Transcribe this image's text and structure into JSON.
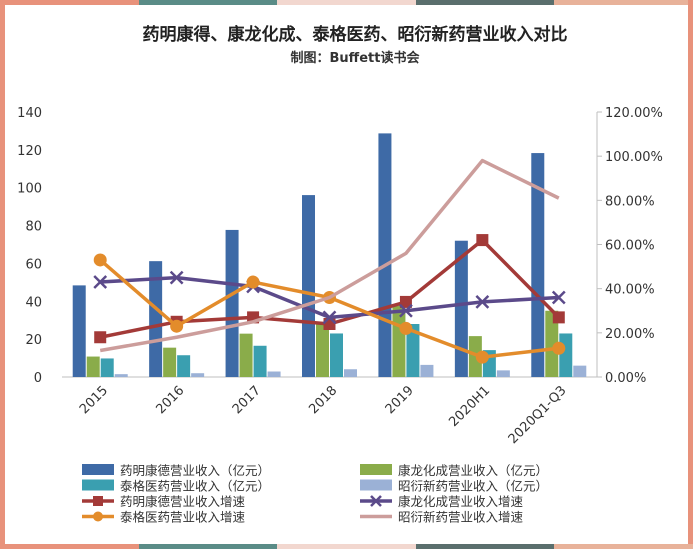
{
  "frame_colors": [
    "#e8927b",
    "#5a8c87",
    "#f2d7cf",
    "#5a6f6d",
    "#e8b29a"
  ],
  "chart_data": {
    "type": "bar",
    "title": "药明康得、康龙化成、泰格医药、昭衍新药营业收入对比",
    "subtitle": "制图：Buffett读书会",
    "categories": [
      "2015",
      "2016",
      "2017",
      "2018",
      "2019",
      "2020H1",
      "2020Q1-Q3"
    ],
    "y_left": {
      "ylim": [
        0,
        140
      ],
      "ticks": [
        "0",
        "20",
        "40",
        "60",
        "80",
        "100",
        "120",
        "140"
      ]
    },
    "y_right": {
      "ylim": [
        0,
        120
      ],
      "ticks": [
        "0.00%",
        "20.00%",
        "40.00%",
        "60.00%",
        "80.00%",
        "100.00%",
        "120.00%"
      ]
    },
    "grid": false,
    "legend_position": "bottom",
    "bar_series": [
      {
        "name": "药明康德营业收入（亿元）",
        "color": "#3e6aa6",
        "values": [
          48.4,
          61.2,
          77.7,
          96.1,
          128.7,
          72.0,
          118.3
        ]
      },
      {
        "name": "康龙化成营业收入（亿元）",
        "color": "#8aac4a",
        "values": [
          10.8,
          15.5,
          22.9,
          29.1,
          37.6,
          21.6,
          35.0
        ]
      },
      {
        "name": "泰格医药营业收入（亿元）",
        "color": "#3a9fb0",
        "values": [
          9.8,
          11.5,
          16.5,
          23.0,
          28.0,
          14.2,
          23.0
        ]
      },
      {
        "name": "昭衍新药营业收入（亿元）",
        "color": "#9bb1d6",
        "values": [
          1.5,
          2.0,
          2.9,
          4.1,
          6.4,
          3.5,
          6.0
        ]
      }
    ],
    "line_series": [
      {
        "name": "药明康德营业收入增速",
        "color": "#a33a38",
        "marker": "square",
        "values": [
          18,
          25,
          27,
          24,
          34,
          62,
          27
        ]
      },
      {
        "name": "康龙化成营业收入增速",
        "color": "#5b4a8a",
        "marker": "x",
        "values": [
          43,
          45,
          41,
          27,
          30,
          34,
          36
        ]
      },
      {
        "name": "泰格医药营业收入增速",
        "color": "#e38c2b",
        "marker": "circle",
        "values": [
          53,
          23,
          43,
          36,
          22,
          9,
          13
        ]
      },
      {
        "name": "昭衍新药营业收入增速",
        "color": "#cc9d9b",
        "marker": "none",
        "values": [
          12,
          18,
          25,
          36,
          56,
          98,
          81
        ]
      }
    ]
  }
}
